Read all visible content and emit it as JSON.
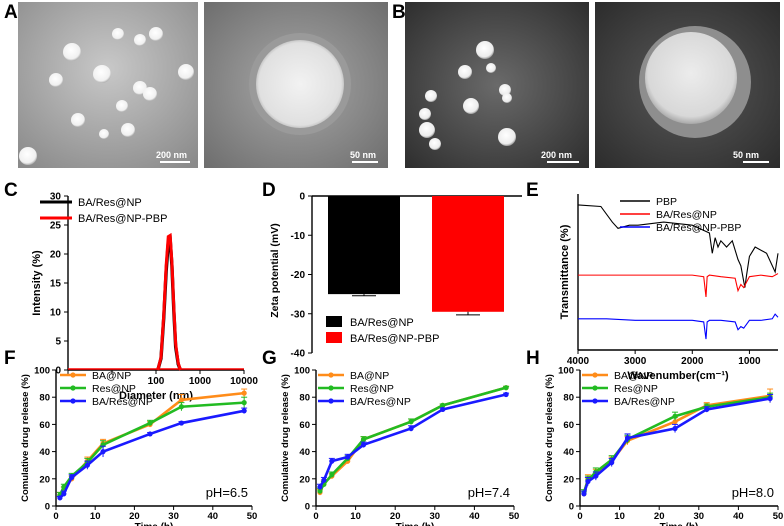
{
  "panels": {
    "A": {
      "letter": "A",
      "scale_large": "200 nm",
      "scale_small": "50 nm"
    },
    "B": {
      "letter": "B",
      "scale_large": "200 nm",
      "scale_small": "50 nm"
    },
    "C": {
      "letter": "C"
    },
    "D": {
      "letter": "D"
    },
    "E": {
      "letter": "E"
    },
    "F": {
      "letter": "F"
    },
    "G": {
      "letter": "G"
    },
    "H": {
      "letter": "H"
    }
  },
  "chart_data": [
    {
      "id": "C",
      "type": "line",
      "xlabel": "Diameter (nm)",
      "ylabel": "Intensity (%)",
      "xscale": "log",
      "xlim": [
        1,
        10000
      ],
      "ylim": [
        0,
        30
      ],
      "xticks": [
        "1",
        "10",
        "100",
        "1000",
        "10000"
      ],
      "yticks": [
        "0",
        "5",
        "10",
        "15",
        "20",
        "25",
        "30"
      ],
      "legend": "top-left",
      "series": [
        {
          "name": "BA/Res@NP",
          "color": "#000000",
          "x": [
            110,
            130,
            150,
            170,
            190,
            210,
            230,
            255,
            280,
            320,
            360
          ],
          "y": [
            0,
            2,
            9,
            17,
            22,
            22.5,
            18,
            10,
            4,
            1,
            0
          ]
        },
        {
          "name": "BA/Res@NP-PBP",
          "color": "#ff0000",
          "x": [
            110,
            130,
            150,
            170,
            190,
            210,
            230,
            255,
            280,
            320,
            360
          ],
          "y": [
            0,
            2.2,
            9.5,
            18,
            23,
            23.2,
            18.5,
            10.5,
            4.5,
            1.2,
            0
          ]
        }
      ]
    },
    {
      "id": "D",
      "type": "bar",
      "ylabel": "Zeta potential (mV)",
      "ylim": [
        -40,
        0
      ],
      "yticks": [
        "0",
        "-10",
        "-20",
        "-30",
        "-40"
      ],
      "legend": "bottom-left",
      "categories": [
        "BA/Res@NP",
        "BA/Res@NP-PBP"
      ],
      "values": [
        -25,
        -29.5
      ],
      "errors": [
        0.4,
        0.8
      ],
      "colors": [
        "#000000",
        "#ff0000"
      ]
    },
    {
      "id": "E",
      "type": "line",
      "xlabel": "Wavenumber(cm⁻¹)",
      "ylabel": "Transmittance (%)",
      "xlim": [
        4000,
        500
      ],
      "xticks": [
        "4000",
        "3000",
        "2000",
        "1000"
      ],
      "legend": "top-right",
      "series": [
        {
          "name": "PBP",
          "color": "#000000",
          "x": [
            4000,
            3600,
            3400,
            3300,
            3100,
            2950,
            2500,
            2000,
            1700,
            1650,
            1600,
            1550,
            1500,
            1400,
            1300,
            1200,
            1150,
            1080,
            1050,
            1000,
            900,
            700,
            550,
            500
          ],
          "y": [
            0.93,
            0.92,
            0.82,
            0.78,
            0.8,
            0.8,
            0.82,
            0.8,
            0.75,
            0.62,
            0.72,
            0.66,
            0.7,
            0.66,
            0.7,
            0.58,
            0.54,
            0.4,
            0.48,
            0.6,
            0.66,
            0.62,
            0.5,
            0.62
          ]
        },
        {
          "name": "BA/Res@NP",
          "color": "#ff0000",
          "x": [
            4000,
            3000,
            2500,
            2000,
            1800,
            1760,
            1740,
            1700,
            1500,
            1250,
            1200,
            1150,
            1100,
            1000,
            800,
            600,
            500
          ],
          "y": [
            0.48,
            0.48,
            0.48,
            0.48,
            0.47,
            0.34,
            0.47,
            0.48,
            0.47,
            0.46,
            0.38,
            0.42,
            0.4,
            0.47,
            0.48,
            0.47,
            0.49
          ]
        },
        {
          "name": "BA/Res@NP-PBP",
          "color": "#0000ff",
          "x": [
            4000,
            3500,
            3000,
            2500,
            2000,
            1800,
            1760,
            1740,
            1700,
            1500,
            1250,
            1200,
            1150,
            1100,
            1000,
            800,
            600,
            550,
            500
          ],
          "y": [
            0.2,
            0.2,
            0.19,
            0.19,
            0.19,
            0.18,
            0.07,
            0.18,
            0.19,
            0.19,
            0.18,
            0.13,
            0.15,
            0.14,
            0.19,
            0.19,
            0.2,
            0.23,
            0.21
          ]
        }
      ]
    },
    {
      "id": "F",
      "type": "line",
      "xlabel": "Time (h)",
      "ylabel": "Comulative drug release (%)",
      "xlim": [
        0,
        50
      ],
      "ylim": [
        0,
        100
      ],
      "xticks": [
        "0",
        "10",
        "20",
        "30",
        "40",
        "50"
      ],
      "yticks": [
        "0",
        "20",
        "40",
        "60",
        "80",
        "100"
      ],
      "legend": "top-left",
      "annotation": "pH=6.5",
      "x": [
        1,
        2,
        4,
        8,
        12,
        24,
        32,
        48
      ],
      "series": [
        {
          "name": "BA@NP",
          "color": "#ff8c1a",
          "values": [
            8,
            12,
            20,
            33,
            46,
            60,
            78,
            83
          ],
          "errors": [
            2,
            2,
            2,
            3,
            3,
            2,
            4,
            3
          ]
        },
        {
          "name": "Res@NP",
          "color": "#22bb22",
          "values": [
            8,
            14,
            22,
            32,
            45,
            61,
            73,
            76
          ],
          "errors": [
            2,
            2,
            2,
            3,
            3,
            2,
            3,
            4
          ]
        },
        {
          "name": "BA/Res@NP",
          "color": "#1a1aff",
          "values": [
            6,
            9,
            21,
            30,
            40,
            53,
            61,
            70
          ],
          "errors": [
            1,
            2,
            2,
            3,
            4,
            1,
            1,
            2
          ]
        }
      ]
    },
    {
      "id": "G",
      "type": "line",
      "xlabel": "Time (h)",
      "ylabel": "Comulative drug release (%)",
      "xlim": [
        0,
        50
      ],
      "ylim": [
        0,
        100
      ],
      "xticks": [
        "0",
        "10",
        "20",
        "30",
        "40",
        "50"
      ],
      "yticks": [
        "0",
        "20",
        "40",
        "60",
        "80",
        "100"
      ],
      "legend": "top-left",
      "annotation": "pH=7.4",
      "x": [
        1,
        2,
        4,
        8,
        12,
        24,
        32,
        48
      ],
      "series": [
        {
          "name": "BA@NP",
          "color": "#ff8c1a",
          "values": [
            10,
            17,
            22,
            33,
            49,
            62,
            74,
            87
          ],
          "errors": [
            2,
            2,
            2,
            2,
            2,
            2,
            1,
            1
          ]
        },
        {
          "name": "Res@NP",
          "color": "#22bb22",
          "values": [
            11,
            16,
            23,
            35,
            49,
            62,
            74,
            87
          ],
          "errors": [
            2,
            2,
            2,
            2,
            2,
            2,
            1,
            1
          ]
        },
        {
          "name": "BA/Res@NP",
          "color": "#1a1aff",
          "values": [
            14,
            19,
            33,
            36,
            45,
            57,
            71,
            82
          ],
          "errors": [
            2,
            2,
            2,
            2,
            2,
            2,
            1,
            1
          ]
        }
      ]
    },
    {
      "id": "H",
      "type": "line",
      "xlabel": "Time (h)",
      "ylabel": "Comulative drug release (%)",
      "xlim": [
        0,
        50
      ],
      "ylim": [
        0,
        100
      ],
      "xticks": [
        "0",
        "10",
        "20",
        "30",
        "40",
        "50"
      ],
      "yticks": [
        "0",
        "20",
        "40",
        "60",
        "80",
        "100"
      ],
      "legend": "top-left",
      "annotation": "pH=8.0",
      "x": [
        1,
        2,
        4,
        8,
        12,
        24,
        32,
        48
      ],
      "series": [
        {
          "name": "BA@NP",
          "color": "#ff8c1a",
          "values": [
            9,
            20,
            24,
            33,
            48,
            62,
            74,
            81
          ],
          "errors": [
            2,
            3,
            3,
            3,
            3,
            3,
            2,
            5
          ]
        },
        {
          "name": "Res@NP",
          "color": "#22bb22",
          "values": [
            10,
            19,
            25,
            34,
            49,
            66,
            73,
            80
          ],
          "errors": [
            2,
            3,
            3,
            3,
            3,
            3,
            2,
            3
          ]
        },
        {
          "name": "BA/Res@NP",
          "color": "#1a1aff",
          "values": [
            9,
            18,
            22,
            32,
            50,
            57,
            71,
            79
          ],
          "errors": [
            2,
            3,
            3,
            3,
            3,
            3,
            2,
            3
          ]
        }
      ]
    }
  ]
}
